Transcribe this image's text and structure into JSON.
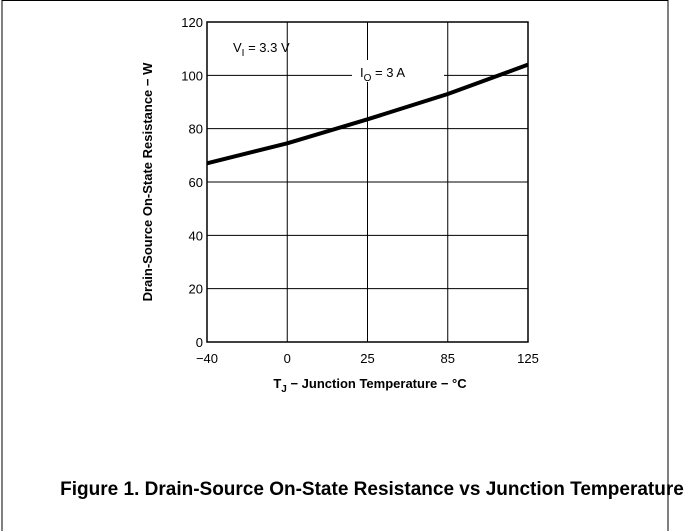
{
  "chart_data": {
    "type": "line",
    "y_label": "Drain-Source On-State Resistance − W",
    "x_label": {
      "main": "T",
      "sub": "J",
      "rest": " − Junction Temperature − °C"
    },
    "annotations": [
      {
        "main": "V",
        "sub": "I",
        "rest": " = 3.3 V"
      },
      {
        "main": "I",
        "sub": "O",
        "rest": " = 3 A"
      }
    ],
    "categories": [
      "−40",
      "0",
      "25",
      "85",
      "125"
    ],
    "series": [
      {
        "name": "I_O = 3 A",
        "color": "#000000",
        "values": [
          67,
          74.5,
          83.5,
          93,
          104
        ]
      }
    ],
    "ylim": [
      0,
      120
    ],
    "yticks": [
      0,
      20,
      40,
      60,
      80,
      100,
      120
    ],
    "grid": true,
    "caption": "Figure 1. Drain-Source On-State Resistance vs Junction Temperature"
  }
}
